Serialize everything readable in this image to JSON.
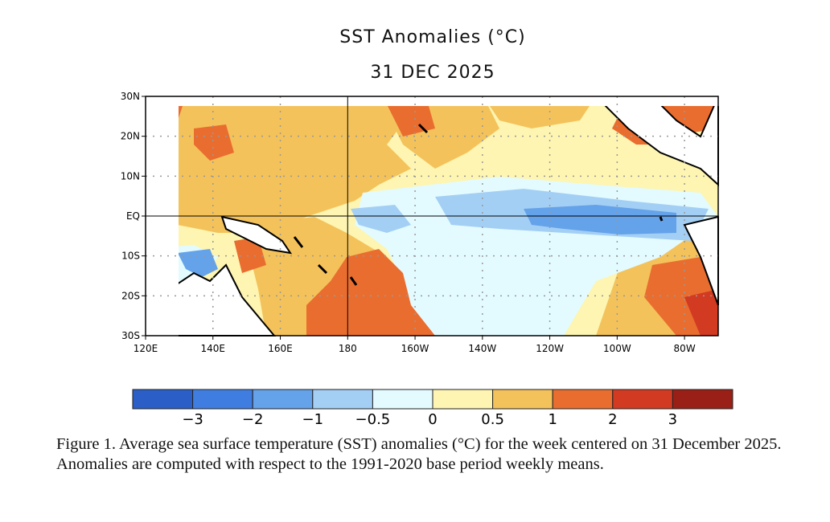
{
  "figure": {
    "title": "SST Anomalies (°C)",
    "date": "31 DEC 2025",
    "caption": "Figure 1. Average sea surface temperature (SST) anomalies (°C) for the week centered on 31 December 2025.  Anomalies are computed with respect to the 1991-2020 base period weekly means."
  },
  "map": {
    "lat_labels": [
      "30N",
      "20N",
      "10N",
      "EQ",
      "10S",
      "20S",
      "30S"
    ],
    "lat_values": [
      30,
      20,
      10,
      0,
      -10,
      -20,
      -30
    ],
    "lon_labels": [
      "120E",
      "140E",
      "160E",
      "180",
      "160W",
      "140W",
      "120W",
      "100W",
      "80W"
    ],
    "lon_values": [
      120,
      140,
      160,
      180,
      200,
      220,
      240,
      260,
      280
    ],
    "lon_range": [
      120,
      290
    ],
    "lat_range": [
      -30,
      30
    ]
  },
  "colorbar": {
    "colors": [
      "#2b5fc7",
      "#3f7ee0",
      "#64a2e9",
      "#a4cff5",
      "#e3fbff",
      "#fdf5b1",
      "#f4c25b",
      "#e96d2f",
      "#d23a22",
      "#9a1f16"
    ],
    "tick_labels": [
      "−3",
      "−2",
      "−1",
      "−0.5",
      "0",
      "0.5",
      "1",
      "2",
      "3"
    ]
  }
}
